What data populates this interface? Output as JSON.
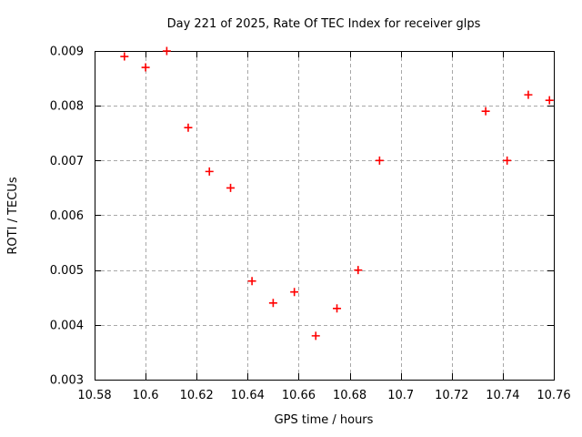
{
  "window": {
    "background": "#ffffff"
  },
  "chart_data": {
    "type": "scatter",
    "title": "Day 221 of 2025, Rate Of TEC Index for receiver glps",
    "xlabel": "GPS time / hours",
    "ylabel": "ROTI / TECUs",
    "xlim": [
      10.58,
      10.76
    ],
    "ylim": [
      0.003,
      0.009
    ],
    "grid": true,
    "legend": "none",
    "xticks": {
      "values": [
        10.58,
        10.6,
        10.62,
        10.64,
        10.66,
        10.68,
        10.7,
        10.72,
        10.74,
        10.76
      ],
      "labels": [
        "10.58",
        "10.6",
        "10.62",
        "10.64",
        "10.66",
        "10.68",
        "10.7",
        "10.72",
        "10.74",
        "10.76"
      ]
    },
    "yticks": {
      "values": [
        0.003,
        0.004,
        0.005,
        0.006,
        0.007,
        0.008,
        0.009
      ],
      "labels": [
        "0.003",
        "0.004",
        "0.005",
        "0.006",
        "0.007",
        "0.008",
        "0.009"
      ]
    },
    "colors": {
      "marker": "#ff0000",
      "grid": "#a8a8a8",
      "axis": "#000000",
      "text": "#000000"
    },
    "marker": {
      "shape": "plus",
      "size": 9,
      "stroke_width": 1.6
    },
    "series": [
      {
        "name": "roti",
        "points": [
          [
            10.5917,
            0.0089
          ],
          [
            10.6,
            0.0087
          ],
          [
            10.6083,
            0.009
          ],
          [
            10.6167,
            0.0076
          ],
          [
            10.625,
            0.0068
          ],
          [
            10.6333,
            0.0065
          ],
          [
            10.6417,
            0.0048
          ],
          [
            10.65,
            0.0044
          ],
          [
            10.6583,
            0.0046
          ],
          [
            10.6667,
            0.0038
          ],
          [
            10.675,
            0.0043
          ],
          [
            10.6833,
            0.005
          ],
          [
            10.6917,
            0.007
          ],
          [
            10.7333,
            0.0079
          ],
          [
            10.7417,
            0.007
          ],
          [
            10.75,
            0.0082
          ],
          [
            10.7583,
            0.0081
          ]
        ]
      }
    ]
  }
}
